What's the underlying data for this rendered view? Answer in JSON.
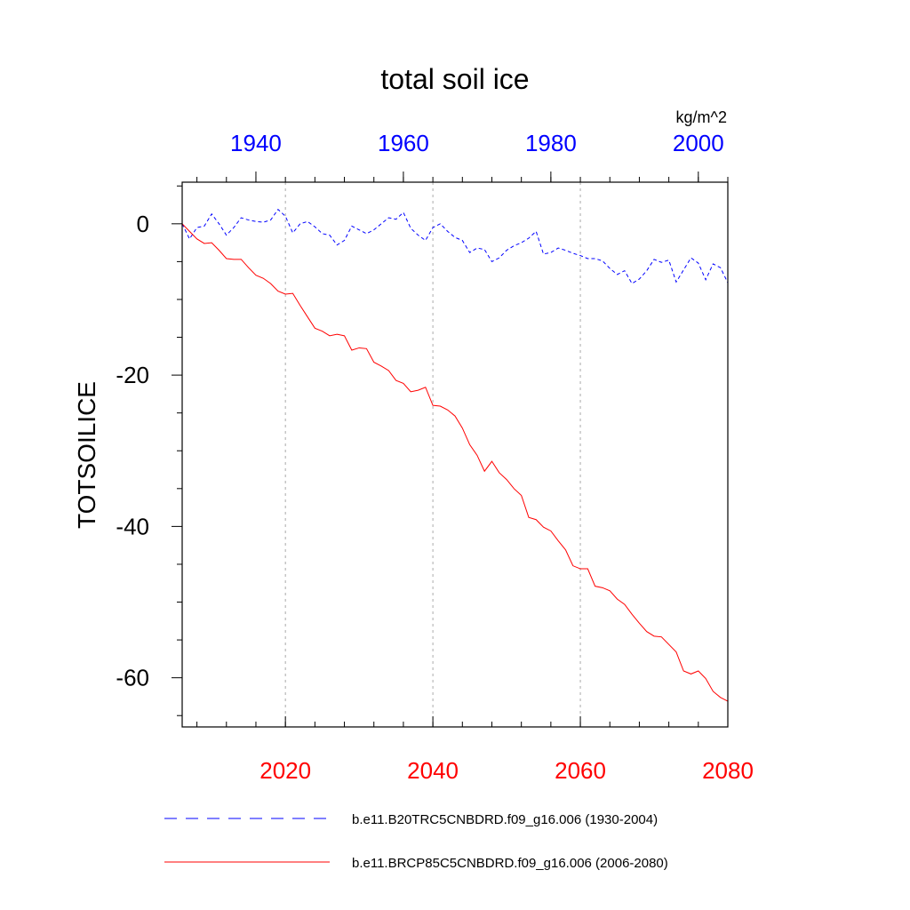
{
  "chart_data": {
    "type": "line",
    "title": "total soil ice",
    "units": "kg/m^2",
    "ylabel": "TOTSOILICE",
    "ylim": [
      -66.5,
      5.5
    ],
    "ytick_labels": [
      "0",
      "-20",
      "-40",
      "-60"
    ],
    "y_ticks": [
      0,
      -20,
      -40,
      -60
    ],
    "bottom_axis": {
      "range": [
        2006,
        2080
      ],
      "ticks": [
        2020,
        2040,
        2060,
        2080
      ],
      "tick_labels": [
        "2020",
        "2040",
        "2060",
        "2080"
      ],
      "color": "#ff0000"
    },
    "top_axis": {
      "range": [
        1930,
        2004
      ],
      "ticks": [
        1940,
        1960,
        1980,
        2000
      ],
      "tick_labels": [
        "1940",
        "1960",
        "1980",
        "2000"
      ],
      "color": "#0000ff"
    },
    "gridlines_x": [
      2020,
      2040,
      2060
    ],
    "series": [
      {
        "name": "b.e11.B20TRC5CNBDRD.f09_g16.006 (1930-2004)",
        "axis": "top",
        "color": "#0000ff",
        "style": "dashed",
        "x_start": 1930,
        "values": [
          0.0,
          -2.0,
          -0.5,
          -0.3,
          1.3,
          0.0,
          -1.5,
          -0.5,
          0.8,
          0.5,
          0.3,
          0.2,
          0.5,
          1.9,
          1.0,
          -1.2,
          0.0,
          0.3,
          -0.4,
          -1.3,
          -1.5,
          -2.8,
          -2.2,
          -0.3,
          -0.8,
          -1.3,
          -0.8,
          0.0,
          0.8,
          0.6,
          1.5,
          -0.6,
          -1.5,
          -2.2,
          -0.5,
          0.0,
          -1.0,
          -1.8,
          -2.2,
          -3.8,
          -3.2,
          -3.4,
          -5.0,
          -4.5,
          -3.5,
          -2.9,
          -2.5,
          -1.9,
          -1.0,
          -4.0,
          -3.8,
          -3.2,
          -3.5,
          -3.9,
          -4.2,
          -4.6,
          -4.6,
          -4.9,
          -5.9,
          -6.7,
          -6.2,
          -7.9,
          -7.3,
          -6.2,
          -4.7,
          -5.1,
          -4.8,
          -7.7,
          -6.1,
          -4.5,
          -5.2,
          -7.4,
          -5.3,
          -5.8,
          -7.8
        ]
      },
      {
        "name": "b.e11.BRCP85C5CNBDRD.f09_g16.006 (2006-2080)",
        "axis": "bottom",
        "color": "#ff0000",
        "style": "solid",
        "x_start": 2006,
        "values": [
          0.0,
          -1.0,
          -2.0,
          -2.6,
          -2.5,
          -3.5,
          -4.6,
          -4.7,
          -4.7,
          -5.8,
          -6.8,
          -7.2,
          -7.9,
          -8.9,
          -9.3,
          -9.2,
          -10.8,
          -12.3,
          -13.8,
          -14.2,
          -14.8,
          -14.6,
          -14.8,
          -16.7,
          -16.4,
          -16.5,
          -18.3,
          -18.8,
          -19.4,
          -20.7,
          -21.1,
          -22.2,
          -22.0,
          -21.6,
          -24.0,
          -24.1,
          -24.6,
          -25.4,
          -27.0,
          -29.2,
          -30.6,
          -32.7,
          -31.4,
          -32.9,
          -33.8,
          -35.0,
          -35.9,
          -38.8,
          -39.1,
          -40.1,
          -40.6,
          -41.9,
          -43.1,
          -45.2,
          -45.6,
          -45.6,
          -47.9,
          -48.1,
          -48.5,
          -49.6,
          -50.3,
          -51.6,
          -52.8,
          -53.9,
          -54.5,
          -54.6,
          -55.6,
          -56.6,
          -59.1,
          -59.5,
          -59.1,
          -60.1,
          -61.8,
          -62.6,
          -63.1
        ]
      }
    ]
  }
}
